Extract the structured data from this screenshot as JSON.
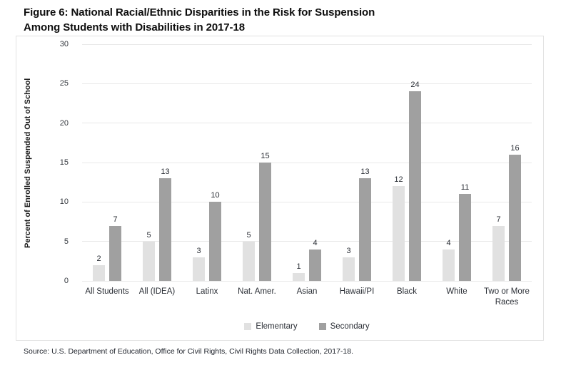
{
  "figure": {
    "title_line1": "Figure 6: National Racial/Ethnic Disparities in the Risk for Suspension",
    "title_line2": "Among Students with Disabilities in 2017-18",
    "source": "Source: U.S. Department of Education, Office for Civil Rights, Civil Rights Data Collection, 2017-18."
  },
  "chart_data": {
    "type": "bar",
    "title": "Figure 6: National Racial/Ethnic Disparities in the Risk for Suspension Among Students with Disabilities in 2017-18",
    "categories": [
      "All Students",
      "All (IDEA)",
      "Latinx",
      "Nat. Amer.",
      "Asian",
      "Hawaii/PI",
      "Black",
      "White",
      "Two or More Races"
    ],
    "series": [
      {
        "name": "Elementary",
        "color": "#e1e1e1",
        "values": [
          2,
          5,
          3,
          5,
          1,
          3,
          12,
          4,
          7
        ]
      },
      {
        "name": "Secondary",
        "color": "#a0a0a0",
        "values": [
          7,
          13,
          10,
          15,
          4,
          13,
          24,
          11,
          16
        ]
      }
    ],
    "xlabel": "",
    "ylabel": "Percent of Enrolled Suspended Out of School",
    "ylim": [
      0,
      30
    ],
    "ytick_interval": 5,
    "yticks": [
      0,
      5,
      10,
      15,
      20,
      25,
      30
    ],
    "grid": true,
    "gridline_color": "#e8e8e8",
    "legend_position": "bottom",
    "data_labels": true
  }
}
